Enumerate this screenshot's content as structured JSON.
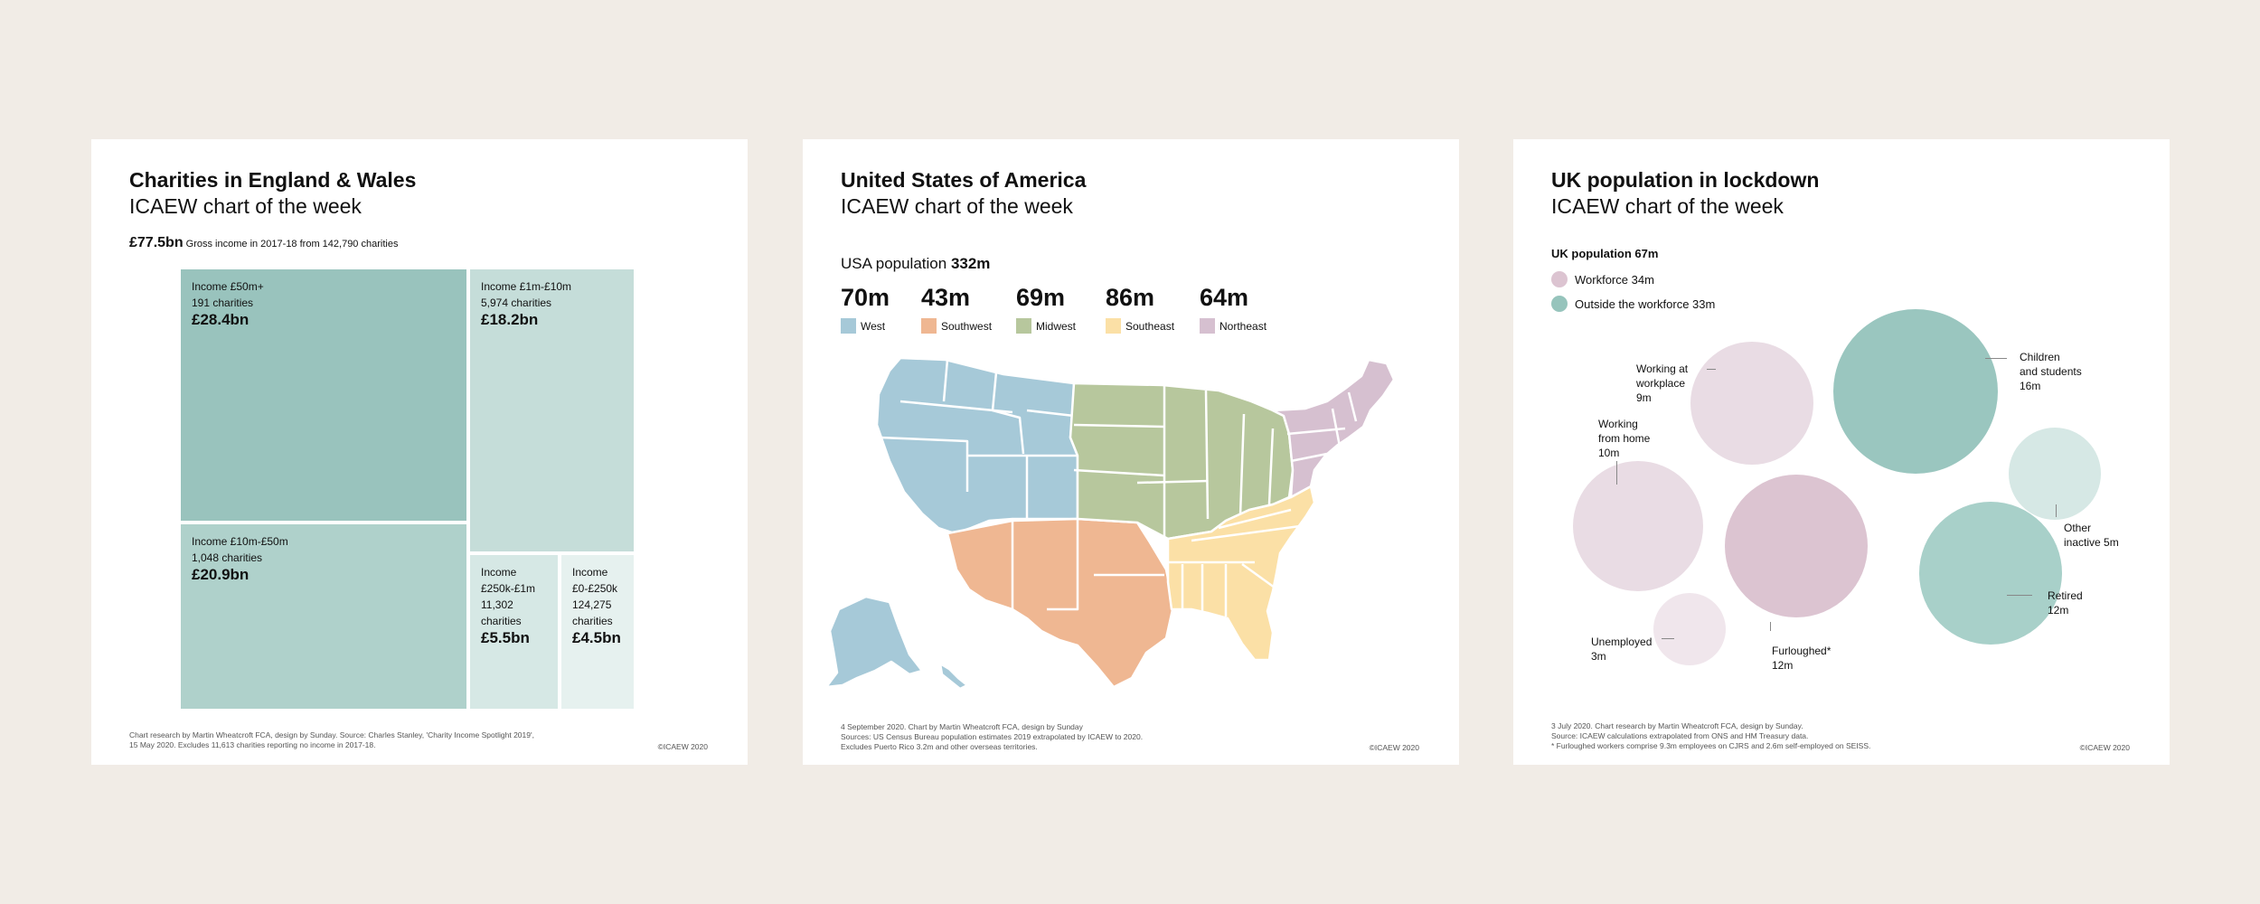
{
  "charities": {
    "title": "Charities in England & Wales",
    "subtitle": "ICAEW chart of the week",
    "headline_value": "£77.5bn",
    "headline_text": "Gross income in 2017-18 from 142,790 charities",
    "chart_data": {
      "type": "treemap",
      "unit": "£bn",
      "cells": [
        {
          "label": "Income £50m+",
          "count": "191 charities",
          "value_text": "£28.4bn",
          "value": 28.4,
          "color": "#99c3bd"
        },
        {
          "label": "Income £10m-£50m",
          "count": "1,048 charities",
          "value_text": "£20.9bn",
          "value": 20.9,
          "color": "#afd1cb"
        },
        {
          "label": "Income £1m-£10m",
          "count": "5,974 charities",
          "value_text": "£18.2bn",
          "value": 18.2,
          "color": "#c5ddd9"
        },
        {
          "label": "Income £250k-£1m",
          "count": "11,302 charities",
          "value_text": "£5.5bn",
          "value": 5.5,
          "color": "#d6e8e5"
        },
        {
          "label": "Income £0-£250k",
          "count": "124,275 charities",
          "value_text": "£4.5bn",
          "value": 4.5,
          "color": "#e6f1ef"
        }
      ]
    },
    "footer_1": "Chart research by Martin Wheatcroft FCA, design by Sunday.   Source: Charles Stanley, 'Charity Income Spotlight 2019',",
    "footer_2": "15 May 2020.   Excludes 11,613 charities reporting no income in 2017-18.",
    "copyright": "©ICAEW 2020"
  },
  "usa": {
    "title": "United States of America",
    "subtitle": "ICAEW chart of the week",
    "pop_label": "USA population",
    "pop_value": "332m",
    "chart_data": {
      "type": "choropleth",
      "unit": "m",
      "regions": [
        {
          "name": "West",
          "value_text": "70m",
          "value": 70,
          "color": "#a6c9d8"
        },
        {
          "name": "Southwest",
          "value_text": "43m",
          "value": 43,
          "color": "#efb792"
        },
        {
          "name": "Midwest",
          "value_text": "69m",
          "value": 69,
          "color": "#b7c79d"
        },
        {
          "name": "Southeast",
          "value_text": "86m",
          "value": 86,
          "color": "#fbe0a6"
        },
        {
          "name": "Northeast",
          "value_text": "64m",
          "value": 64,
          "color": "#d6c0d0"
        }
      ]
    },
    "footer_1": "4 September 2020.   Chart by Martin Wheatcroft FCA, design by Sunday",
    "footer_2": "Sources: US Census Bureau population estimates 2019 extrapolated by ICAEW to 2020.",
    "footer_3": "Excludes Puerto Rico 3.2m and other overseas territories.",
    "copyright": "©ICAEW 2020"
  },
  "uk": {
    "title": "UK population in lockdown",
    "subtitle": "ICAEW chart of the week",
    "pop_label": "UK population 67m",
    "legend": [
      {
        "name": "Workforce 34m",
        "color": "#dcc4d1"
      },
      {
        "name": "Outside the workforce 33m",
        "color": "#96c4bc"
      }
    ],
    "chart_data": {
      "type": "bubble",
      "unit": "m",
      "bubbles": [
        {
          "l1": "Working at",
          "l2": "workplace",
          "l3": "9m",
          "value": 9,
          "group": "workforce",
          "color": "#e9dce4"
        },
        {
          "l1": "Working",
          "l2": "from home",
          "l3": "10m",
          "value": 10,
          "group": "workforce",
          "color": "#e9dce4"
        },
        {
          "l1": "Furloughed*",
          "l2": "12m",
          "l3": "",
          "value": 12,
          "group": "workforce",
          "color": "#dcc4d1"
        },
        {
          "l1": "Unemployed",
          "l2": "3m",
          "l3": "",
          "value": 3,
          "group": "workforce",
          "color": "#f0e6ec"
        },
        {
          "l1": "Children",
          "l2": "and students",
          "l3": "16m",
          "value": 16,
          "group": "outside",
          "color": "#9ac6bf"
        },
        {
          "l1": "Other",
          "l2": "inactive 5m",
          "l3": "",
          "value": 5,
          "group": "outside",
          "color": "#d6e8e5"
        },
        {
          "l1": "Retired",
          "l2": "12m",
          "l3": "",
          "value": 12,
          "group": "outside",
          "color": "#a8d0c9"
        }
      ]
    },
    "footer_1": "3 July 2020.   Chart research by Martin Wheatcroft FCA, design by Sunday.",
    "footer_2": "Source: ICAEW calculations extrapolated from ONS and HM Treasury data.",
    "footer_3": "* Furloughed workers comprise 9.3m employees on CJRS and 2.6m self-employed on SEISS.",
    "copyright": "©ICAEW 2020"
  }
}
